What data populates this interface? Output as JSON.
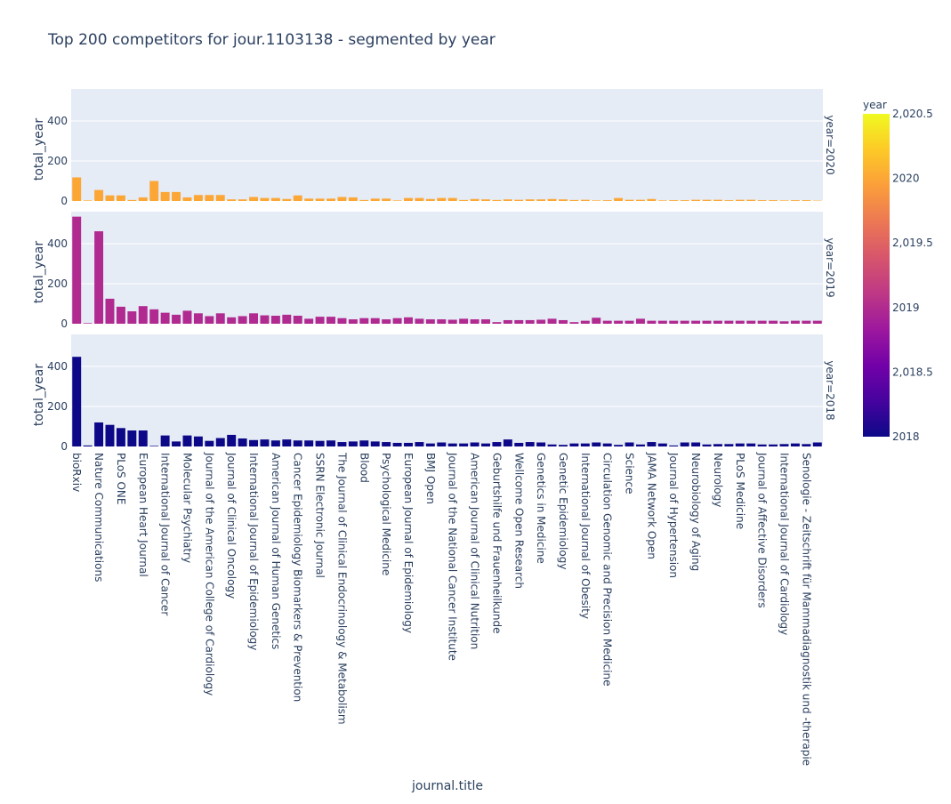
{
  "chart_data": {
    "type": "bar",
    "title": "Top 200 competitors for jour.1103138 - segmented by year",
    "xlabel": "journal.title",
    "ylabel": "total_year",
    "ylim": [
      0,
      560
    ],
    "yticks": [
      0,
      200,
      400
    ],
    "grid": true,
    "x_tick_labels": [
      "bioRxiv",
      "Nature Communications",
      "PLoS ONE",
      "European Heart Journal",
      "International Journal of Cancer",
      "Molecular Psychiatry",
      "Journal of the American College of Cardiology",
      "Journal of Clinical Oncology",
      "International Journal of Epidemiology",
      "American Journal of Human Genetics",
      "Cancer Epidemiology Biomarkers & Prevention",
      "SSRN Electronic Journal",
      "The Journal of Clinical Endocrinology & Metabolism",
      "Blood",
      "Psychological Medicine",
      "European Journal of Epidemiology",
      "BMJ Open",
      "Journal of the National Cancer Institute",
      "American Journal of Clinical Nutrition",
      "Geburtshilfe und Frauenheilkunde",
      "Wellcome Open Research",
      "Genetics in Medicine",
      "Genetic Epidemiology",
      "International Journal of Obesity",
      "Circulation Genomic and Precision Medicine",
      "Science",
      "JAMA Network Open",
      "Journal of Hypertension",
      "Neurobiology of Aging",
      "Neurology",
      "PLoS Medicine",
      "Journal of Affective Disorders",
      "International Journal of Cardiology",
      "Senologie - Zeitschrift für Mammadiagnostik und -therapie"
    ],
    "category_count": 68,
    "colorbar": {
      "title": "year",
      "tick_labels": [
        "2,020.5",
        "2020",
        "2,019.5",
        "2019",
        "2,018.5",
        "2018"
      ],
      "range": [
        2018,
        2020.5
      ]
    },
    "series": [
      {
        "name": "year=2020",
        "color": "#fca636",
        "values": [
          118,
          3,
          55,
          28,
          28,
          5,
          18,
          100,
          45,
          45,
          18,
          30,
          30,
          30,
          8,
          8,
          20,
          15,
          15,
          10,
          28,
          12,
          12,
          12,
          20,
          18,
          5,
          12,
          12,
          3,
          15,
          15,
          10,
          15,
          15,
          5,
          10,
          8,
          5,
          8,
          6,
          8,
          8,
          10,
          8,
          5,
          6,
          3,
          4,
          15,
          6,
          6,
          10,
          3,
          4,
          4,
          6,
          6,
          6,
          4,
          6,
          6,
          4,
          4,
          3,
          4,
          4,
          2
        ]
      },
      {
        "name": "year=2019",
        "color": "#b12a90",
        "values": [
          535,
          3,
          462,
          125,
          85,
          62,
          88,
          72,
          55,
          45,
          65,
          52,
          38,
          52,
          32,
          38,
          52,
          42,
          40,
          45,
          40,
          25,
          35,
          35,
          28,
          22,
          28,
          28,
          22,
          28,
          32,
          25,
          22,
          22,
          20,
          25,
          22,
          22,
          8,
          18,
          18,
          18,
          20,
          25,
          18,
          8,
          15,
          30,
          15,
          15,
          15,
          25,
          15,
          15,
          15,
          15,
          15,
          15,
          15,
          15,
          15,
          15,
          15,
          15,
          12,
          15,
          15,
          15
        ]
      },
      {
        "name": "year=2018",
        "color": "#0d0887",
        "values": [
          448,
          5,
          120,
          108,
          92,
          80,
          80,
          3,
          55,
          25,
          55,
          50,
          28,
          42,
          58,
          40,
          32,
          35,
          30,
          35,
          30,
          30,
          28,
          30,
          22,
          25,
          30,
          25,
          22,
          18,
          18,
          22,
          15,
          20,
          15,
          15,
          20,
          15,
          22,
          35,
          18,
          22,
          20,
          10,
          8,
          15,
          15,
          20,
          15,
          8,
          20,
          10,
          22,
          15,
          5,
          20,
          20,
          10,
          12,
          12,
          15,
          15,
          10,
          10,
          12,
          15,
          12,
          20
        ]
      }
    ]
  }
}
